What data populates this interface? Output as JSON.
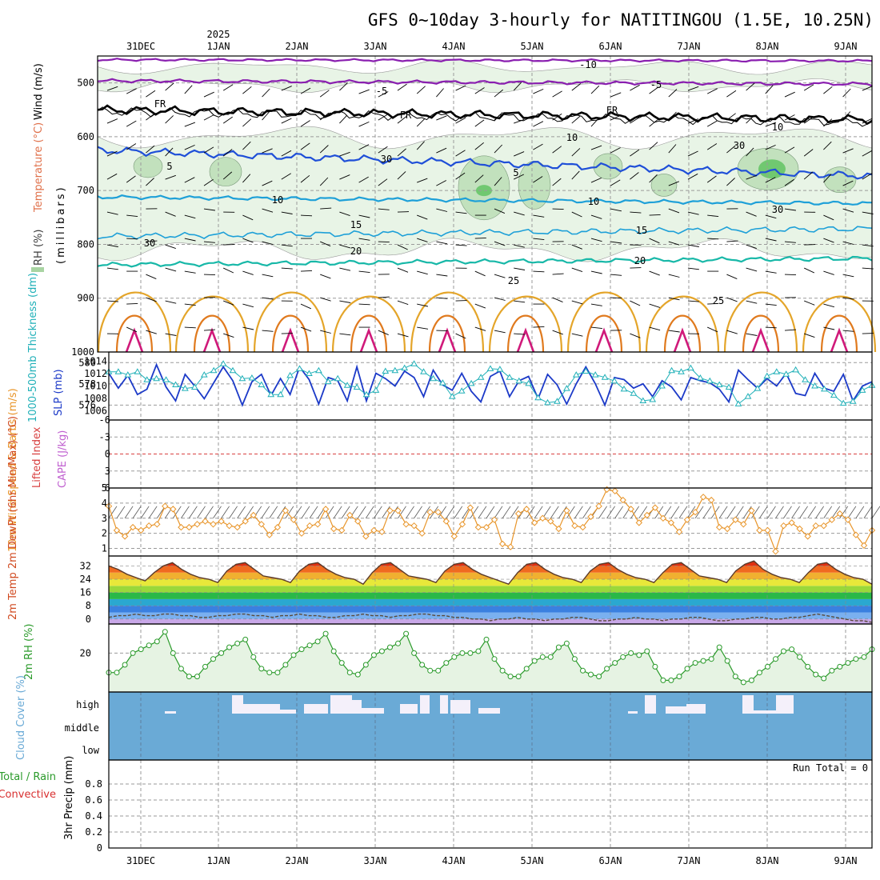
{
  "title": "GFS 0~10day 3-hourly for NATITINGOU (1.5E, 10.25N)",
  "year_label": "2025",
  "run_total": "Run Total = 0",
  "colors": {
    "grid": "#9a9a9a",
    "purple": "#8a1fb0",
    "black": "#000000",
    "blue": "#1f4fd8",
    "cyan": "#1ea0d8",
    "teal": "#18b8a8",
    "green_line": "#12b48a",
    "orange25": "#e4a52a",
    "orange30": "#e07a1e",
    "magenta": "#d01a7a",
    "rh_fill": "#e6f3e3",
    "rh_mid": "#a8d4a2",
    "rh_dark": "#5a9a5a",
    "thickness": "#1c3ac8",
    "slp": "#20b0b8",
    "li_zero": "#d84040",
    "wind10": "#e8952a",
    "dew": "#5a4a3a",
    "rh2m": "#2a9a2a",
    "cloud": "#6aaad6",
    "precip_grid": "#bbbbbb"
  },
  "chart_data": [
    {
      "type": "heatmap",
      "panel": "upper-air",
      "ylabel_parts": [
        "Wind (m/s)",
        "Temperature (°C)",
        "RH (%)",
        "(millibars)"
      ],
      "y_ticks": [
        500,
        600,
        700,
        800,
        900,
        1000
      ],
      "ylim": [
        1000,
        450
      ],
      "x_ticks": [
        "31DEC",
        "1JAN",
        "2JAN",
        "3JAN",
        "4JAN",
        "5JAN",
        "6JAN",
        "7JAN",
        "8JAN",
        "9JAN"
      ],
      "contour_labels": {
        "t_minus10": "-10",
        "t_minus5": "-5",
        "freezing": "FR",
        "t5": "5",
        "t10": "10",
        "t15": "15",
        "t20": "20",
        "t25": "25",
        "rh10": "10",
        "rh30": "30"
      }
    },
    {
      "type": "line",
      "panel": "thickness-slp",
      "ylabel_left": "1000-500mb Thickness (dm)",
      "ylabel_right": "SLP (mb)",
      "left_ticks": [
        580,
        578,
        576
      ],
      "right_ticks": [
        1014,
        1012,
        1010,
        1008,
        1006
      ],
      "series": [
        {
          "name": "Thickness",
          "values": [
            579.0,
            577.6,
            578.8,
            577.0,
            577.5,
            579.8,
            577.7,
            576.4,
            578.9,
            577.8,
            576.6,
            578.1,
            579.6,
            578.3,
            576.0,
            578.2,
            578.9,
            576.9,
            578.5,
            577.0,
            579.6,
            578.4,
            576.1,
            578.6,
            578.3,
            576.4,
            579.6,
            576.4,
            579.0,
            578.5,
            577.8,
            579.2,
            578.6,
            576.8,
            579.3,
            577.9,
            577.4,
            579.0,
            577.3,
            576.3,
            578.7,
            579.2,
            576.8,
            578.3,
            578.7,
            576.6,
            578.9,
            577.9,
            576.1,
            578.0,
            579.6,
            578.0,
            576.0,
            578.6,
            578.4,
            577.6,
            578.0,
            576.8,
            578.3,
            577.7,
            576.5,
            578.6,
            578.3,
            578.1,
            577.5,
            576.3,
            579.3,
            578.4,
            577.6,
            578.5,
            577.8,
            579.0,
            577.1,
            576.9,
            579.0,
            577.6,
            577.3,
            578.9,
            576.4,
            577.8,
            578.2
          ]
        },
        {
          "name": "SLP",
          "values": [
            1012.3,
            1012.3,
            1011.8,
            1012.3,
            1011.0,
            1011.2,
            1011.0,
            1010.2,
            1009.6,
            1009.8,
            1011.8,
            1012.5,
            1013.6,
            1012.5,
            1011.2,
            1011.3,
            1010.2,
            1008.6,
            1008.6,
            1011.7,
            1012.8,
            1012.0,
            1012.5,
            1010.7,
            1011.2,
            1010.1,
            1009.8,
            1008.6,
            1009.3,
            1012.4,
            1012.5,
            1012.9,
            1013.6,
            1012.3,
            1011.2,
            1010.5,
            1008.3,
            1009.2,
            1010.4,
            1011.4,
            1012.8,
            1012.7,
            1011.4,
            1010.8,
            1010.4,
            1008.1,
            1007.3,
            1007.5,
            1009.6,
            1011.8,
            1012.4,
            1011.8,
            1011.4,
            1010.8,
            1009.5,
            1008.8,
            1007.6,
            1007.8,
            1010.0,
            1012.5,
            1012.3,
            1012.9,
            1011.3,
            1010.8,
            1010.2,
            1009.8,
            1007.1,
            1008.3,
            1009.6,
            1011.6,
            1012.3,
            1011.9,
            1012.6,
            1011.0,
            1010.0,
            1009.5,
            1008.5,
            1007.2,
            1007.5,
            1009.3,
            1010.1
          ]
        }
      ]
    },
    {
      "type": "line",
      "panel": "lifted-index-cape",
      "ylabel_left": "Lifted Index",
      "ylabel_right": "CAPE (J/kg)",
      "y_ticks": [
        "-6",
        "-3",
        "0",
        "3",
        "6"
      ],
      "ylim": [
        -6,
        6
      ],
      "values": []
    },
    {
      "type": "line",
      "panel": "10m-wind",
      "ylabel": "10m Wind Speed & Barbs (m/s)",
      "y_ticks": [
        1,
        2,
        3,
        4,
        5
      ],
      "ylim": [
        0.5,
        5
      ],
      "values": [
        3.8,
        2.2,
        1.8,
        2.4,
        2.2,
        2.5,
        2.6,
        3.8,
        3.6,
        2.4,
        2.4,
        2.6,
        2.8,
        2.6,
        2.8,
        2.5,
        2.4,
        2.8,
        3.2,
        2.6,
        1.9,
        2.4,
        3.5,
        2.9,
        2.0,
        2.5,
        2.6,
        3.6,
        2.3,
        2.2,
        3.2,
        2.8,
        1.8,
        2.2,
        2.1,
        3.5,
        3.5,
        2.6,
        2.5,
        2.0,
        3.4,
        3.4,
        2.8,
        1.8,
        2.6,
        3.7,
        2.4,
        2.4,
        2.9,
        1.3,
        1.1,
        3.3,
        3.6,
        2.7,
        3.0,
        2.8,
        2.3,
        3.5,
        2.5,
        2.4,
        3.1,
        3.8,
        4.9,
        4.8,
        4.2,
        3.6,
        2.7,
        3.2,
        3.7,
        3.0,
        2.7,
        2.1,
        2.9,
        3.4,
        4.4,
        4.2,
        2.4,
        2.3,
        2.9,
        2.6,
        3.5,
        2.2,
        2.2,
        0.8,
        2.5,
        2.7,
        2.3,
        1.8,
        2.5,
        2.5,
        2.9,
        3.3,
        2.9,
        1.9,
        1.2,
        2.2
      ]
    },
    {
      "type": "area",
      "panel": "2m-temp",
      "ylabel": "2m Temp 2m DewPt (6hr Min/Max) (°C)",
      "y_ticks": [
        0,
        8,
        16,
        24,
        32
      ],
      "ylim": [
        -3,
        38
      ],
      "series": [
        {
          "name": "Temp",
          "values": [
            32,
            30,
            27,
            25,
            23,
            28,
            32,
            34,
            30,
            27,
            25,
            24,
            22,
            29,
            33,
            34,
            30,
            26,
            25,
            24,
            22,
            29,
            33,
            34,
            30,
            27,
            25,
            24,
            21,
            28,
            33,
            34,
            30,
            26,
            25,
            24,
            22,
            29,
            33,
            34,
            30,
            27,
            25,
            23,
            21,
            28,
            33,
            34,
            30,
            27,
            25,
            24,
            22,
            29,
            33,
            34,
            30,
            27,
            25,
            24,
            22,
            28,
            33,
            34,
            30,
            26,
            25,
            24,
            22,
            29,
            33,
            35,
            30,
            27,
            25,
            24,
            22,
            28,
            33,
            34,
            30,
            27,
            25,
            24,
            21
          ]
        },
        {
          "name": "DewPt",
          "values": [
            1,
            2,
            2,
            3,
            2,
            2,
            3,
            3,
            2,
            2,
            1,
            1,
            2,
            2,
            3,
            3,
            2,
            2,
            1,
            2,
            2,
            3,
            2,
            2,
            1,
            1,
            2,
            2,
            3,
            2,
            2,
            1,
            2,
            2,
            3,
            3,
            2,
            2,
            1,
            1,
            0,
            0,
            -1,
            0,
            0,
            1,
            0,
            0,
            -1,
            0,
            0,
            1,
            1,
            0,
            -1,
            -1,
            0,
            0,
            1,
            0,
            0,
            -1,
            0,
            0,
            1,
            1,
            0,
            -1,
            -1,
            0,
            0,
            1,
            1,
            0,
            0,
            1,
            1,
            2,
            3,
            2,
            1,
            0,
            -1,
            -1,
            -2
          ]
        }
      ]
    },
    {
      "type": "area",
      "panel": "2m-rh",
      "ylabel": "2m RH (%)",
      "y_ticks": [
        20
      ],
      "ylim": [
        0,
        35
      ],
      "values": [
        10,
        10,
        14,
        20,
        22,
        24,
        26,
        31,
        20,
        12,
        8,
        8,
        13,
        17,
        20,
        23,
        25,
        27,
        18,
        12,
        10,
        10,
        14,
        19,
        22,
        24,
        26,
        30,
        21,
        15,
        10,
        9,
        14,
        19,
        21,
        23,
        25,
        30,
        20,
        14,
        11,
        11,
        15,
        18,
        20,
        20,
        21,
        27,
        17,
        11,
        8,
        8,
        12,
        16,
        18,
        18,
        23,
        25,
        17,
        11,
        9,
        8,
        12,
        15,
        18,
        20,
        19,
        21,
        13,
        6,
        6,
        8,
        12,
        15,
        16,
        17,
        23,
        16,
        8,
        5,
        6,
        10,
        13,
        17,
        21,
        22,
        18,
        13,
        9,
        7,
        11,
        13,
        15,
        17,
        18,
        22
      ]
    },
    {
      "type": "bar",
      "panel": "cloud-cover",
      "ylabel": "Cloud Cover (%)",
      "levels": [
        "high",
        "middle",
        "low"
      ]
    },
    {
      "type": "bar",
      "panel": "precip",
      "ylabel_parts": [
        "Total / Rain",
        "Convective",
        "3hr Precip (mm)"
      ],
      "y_ticks": [
        "0",
        "0.2",
        "0.4",
        "0.6",
        "0.8"
      ],
      "ylim": [
        0,
        1
      ],
      "values": []
    }
  ]
}
